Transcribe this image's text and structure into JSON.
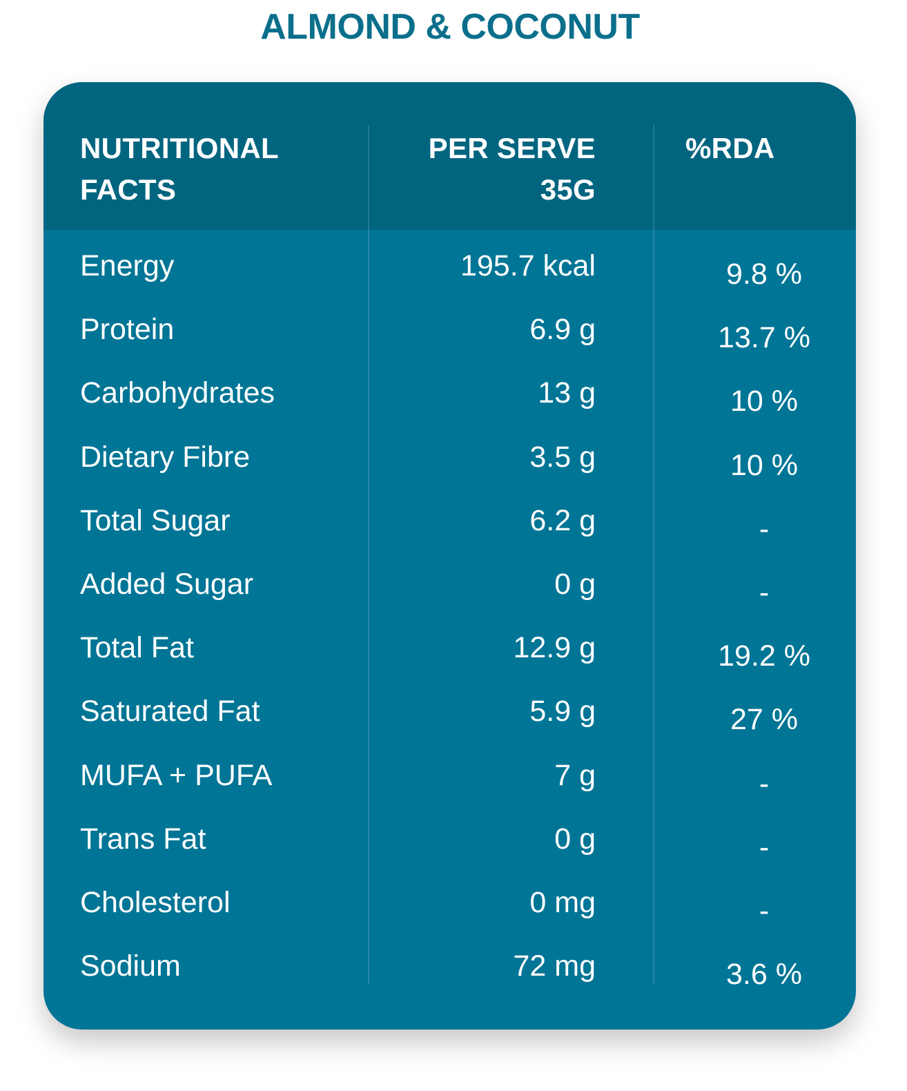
{
  "title": "ALMOND & COCONUT",
  "header": {
    "col1_line1": "NUTRITIONAL",
    "col1_line2": "FACTS",
    "col2_line1": "PER SERVE",
    "col2_line2": "35G",
    "col3": "%RDA"
  },
  "rows": [
    {
      "name": "Energy",
      "value": "195.7 kcal",
      "rda": "9.8 %"
    },
    {
      "name": "Protein",
      "value": "6.9 g",
      "rda": "13.7 %"
    },
    {
      "name": "Carbohydrates",
      "value": "13 g",
      "rda": "10 %"
    },
    {
      "name": "Dietary Fibre",
      "value": "3.5 g",
      "rda": "10 %"
    },
    {
      "name": "Total Sugar",
      "value": "6.2 g",
      "rda": "-"
    },
    {
      "name": "Added Sugar",
      "value": "0 g",
      "rda": "-"
    },
    {
      "name": "Total Fat",
      "value": "12.9 g",
      "rda": "19.2 %"
    },
    {
      "name": "Saturated Fat",
      "value": "5.9 g",
      "rda": "27 %"
    },
    {
      "name": "MUFA + PUFA",
      "value": "7 g",
      "rda": "-"
    },
    {
      "name": "Trans Fat",
      "value": "0 g",
      "rda": "-"
    },
    {
      "name": "Cholesterol",
      "value": "0 mg",
      "rda": "-"
    },
    {
      "name": "Sodium",
      "value": "72 mg",
      "rda": "3.6 %"
    }
  ],
  "colors": {
    "title": "#0b6f8c",
    "card": "#017596",
    "header": "#016580",
    "text": "#ffffff"
  }
}
